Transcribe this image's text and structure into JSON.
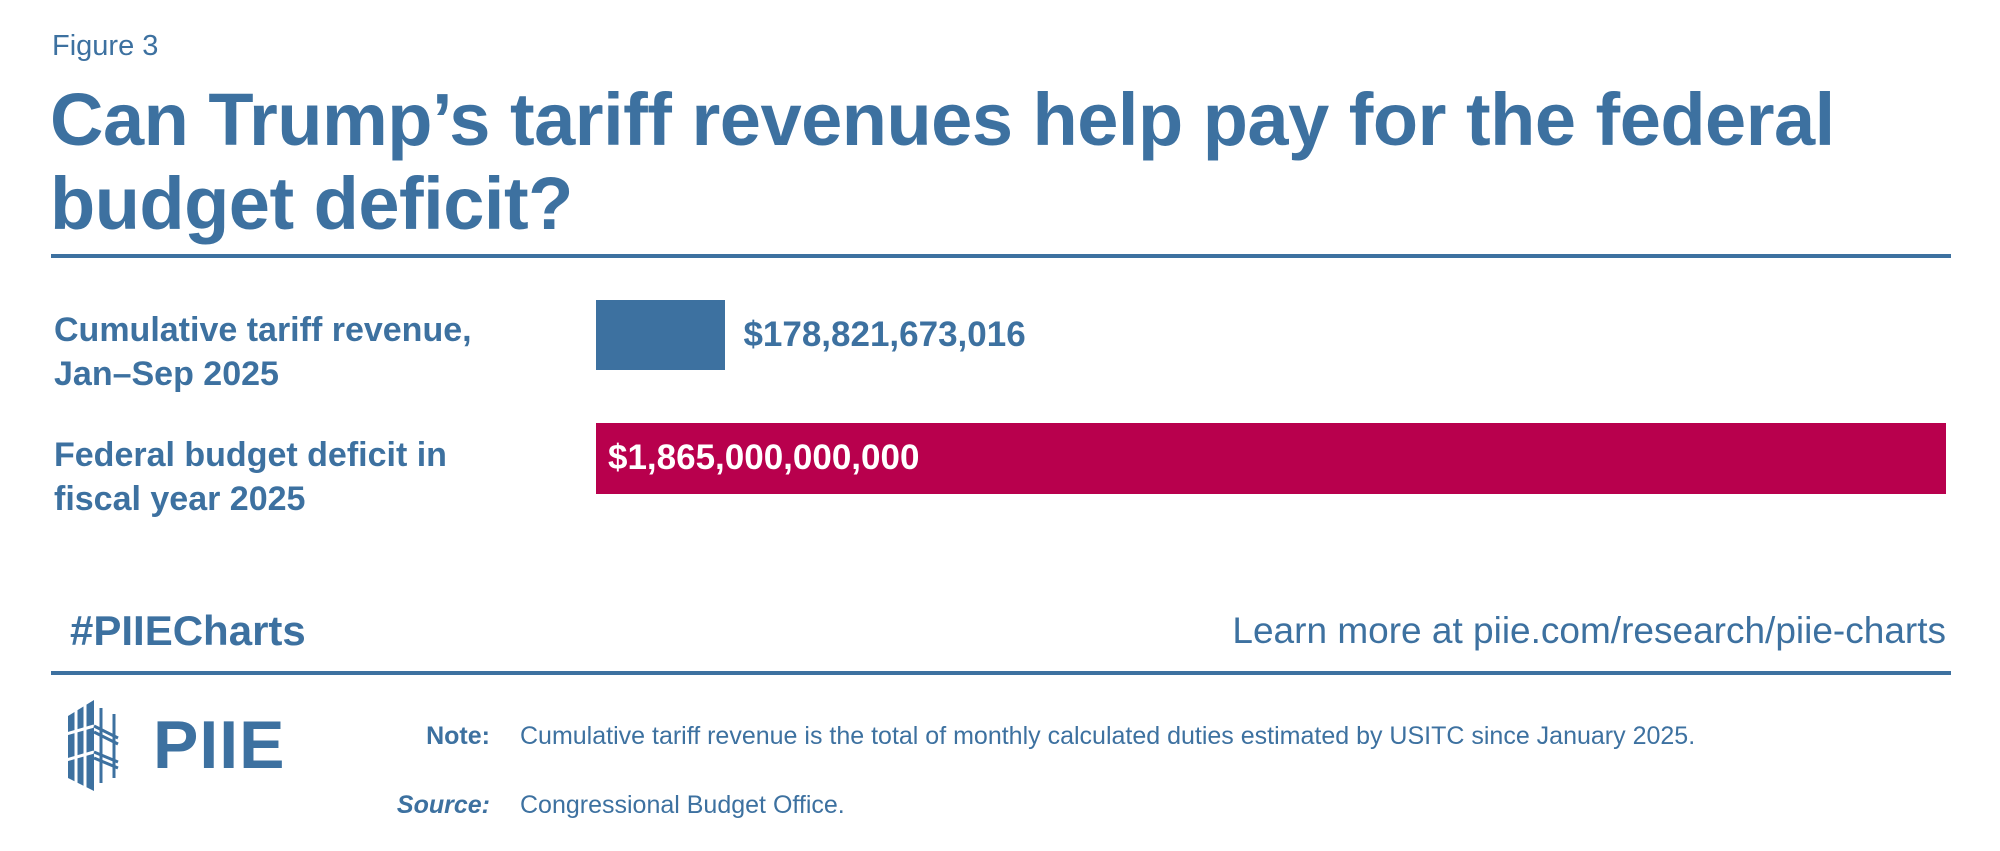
{
  "figure_label": "Figure 3",
  "colors": {
    "text": "#3d71a0",
    "tariff_bar": "#3d71a0",
    "deficit_bar": "#b8004d"
  },
  "chart_data": {
    "type": "bar",
    "orientation": "horizontal",
    "title": "Can Trump’s tariff revenues help pay for the federal budget deficit?",
    "categories": [
      "Cumulative tariff revenue, Jan–Sep 2025",
      "Federal budget deficit in fiscal year 2025"
    ],
    "category_lines": [
      [
        "Cumulative tariff revenue,",
        "Jan–Sep 2025"
      ],
      [
        "Federal budget deficit in",
        "fiscal year 2025"
      ]
    ],
    "values": [
      178821673016,
      1865000000000
    ],
    "data_labels": [
      "$178,821,673,016",
      "$1,865,000,000,000"
    ],
    "bar_colors": [
      "#3d71a0",
      "#b8004d"
    ],
    "grid": false,
    "axis_visible": false
  },
  "footer": {
    "hashtag": "#PIIECharts",
    "learn_more": "Learn more at piie.com/research/piie-charts",
    "logo_text": "PIIE",
    "note_label": "Note:",
    "note_text": "Cumulative tariff revenue is the total of monthly calculated duties estimated by USITC since January 2025.",
    "source_label": "Source:",
    "source_text": "Congressional Budget Office."
  }
}
